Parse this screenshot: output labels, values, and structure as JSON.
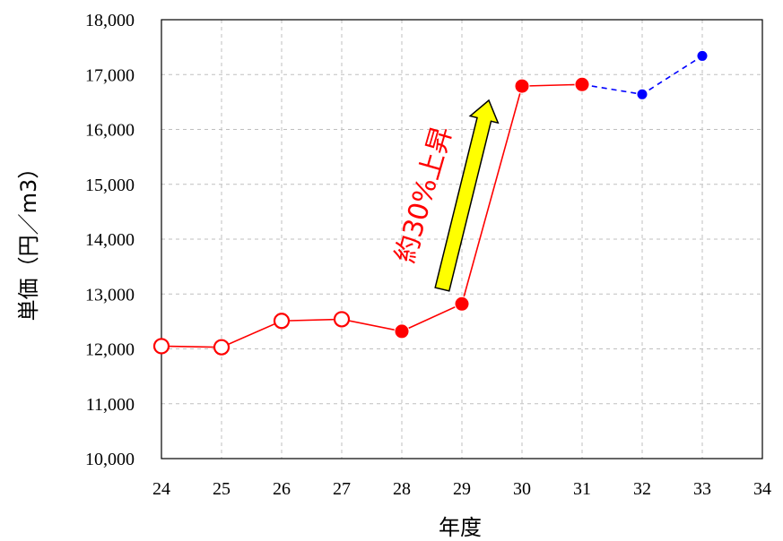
{
  "chart_data": {
    "type": "line",
    "xlabel": "年度",
    "ylabel": "単価（円／m3）",
    "xlim": [
      24,
      34
    ],
    "ylim": [
      10000,
      18000
    ],
    "x_ticks": [
      "24",
      "25",
      "26",
      "27",
      "28",
      "29",
      "30",
      "31",
      "32",
      "33",
      "34"
    ],
    "y_ticks": [
      "10,000",
      "11,000",
      "12,000",
      "13,000",
      "14,000",
      "15,000",
      "16,000",
      "17,000",
      "18,000"
    ],
    "grid": "dashed",
    "series": [
      {
        "style": "solid",
        "color": "#ff0000",
        "points": [
          {
            "x": 24,
            "y": 12050,
            "marker": "open"
          },
          {
            "x": 25,
            "y": 12030,
            "marker": "open"
          },
          {
            "x": 26,
            "y": 12510,
            "marker": "open"
          },
          {
            "x": 27,
            "y": 12540,
            "marker": "open"
          },
          {
            "x": 28,
            "y": 12320,
            "marker": "filled"
          },
          {
            "x": 29,
            "y": 12820,
            "marker": "filled"
          },
          {
            "x": 30,
            "y": 16790,
            "marker": "filled"
          },
          {
            "x": 31,
            "y": 16820,
            "marker": "filled"
          }
        ]
      },
      {
        "style": "dashed",
        "color": "#0000ff",
        "points": [
          {
            "x": 31,
            "y": 16820,
            "marker": "none"
          },
          {
            "x": 32,
            "y": 16640,
            "marker": "filled"
          },
          {
            "x": 33,
            "y": 17340,
            "marker": "filled"
          }
        ]
      }
    ],
    "annotation": {
      "text": "約30%上昇",
      "color": "#ff0000",
      "arrow_fill": "#ffff00"
    }
  }
}
